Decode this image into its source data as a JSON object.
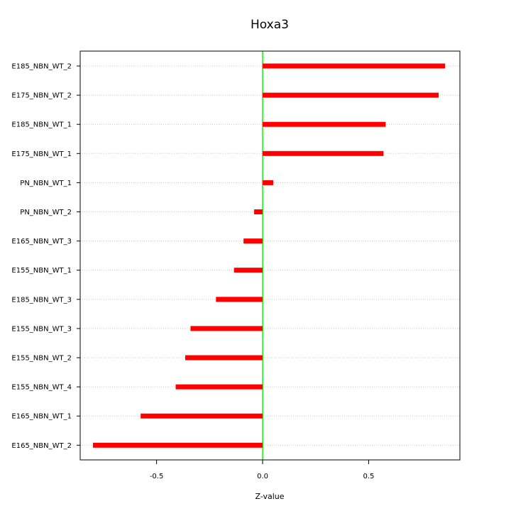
{
  "chart_data": {
    "type": "bar",
    "orientation": "horizontal",
    "title": "Hoxa3",
    "xlabel": "Z-value",
    "ylabel": "",
    "categories": [
      "E185_NBN_WT_2",
      "E175_NBN_WT_2",
      "E185_NBN_WT_1",
      "E175_NBN_WT_1",
      "PN_NBN_WT_1",
      "PN_NBN_WT_2",
      "E165_NBN_WT_3",
      "E155_NBN_WT_1",
      "E185_NBN_WT_3",
      "E155_NBN_WT_3",
      "E155_NBN_WT_2",
      "E155_NBN_WT_4",
      "E165_NBN_WT_1",
      "E165_NBN_WT_2"
    ],
    "values": [
      0.86,
      0.83,
      0.58,
      0.57,
      0.05,
      -0.04,
      -0.09,
      -0.135,
      -0.22,
      -0.34,
      -0.365,
      -0.41,
      -0.575,
      -0.8
    ],
    "xlim": [
      -0.86,
      0.93
    ],
    "xticks": [
      -0.5,
      0.0,
      0.5
    ],
    "xtick_labels": [
      "-0.5",
      "0.0",
      "0.5"
    ],
    "grid": "horizontal dotted",
    "zero_line": true
  },
  "colors": {
    "bar": "#ff0000",
    "zero_line": "#00ff00",
    "grid": "#c8c8c8",
    "frame": "#000000"
  }
}
